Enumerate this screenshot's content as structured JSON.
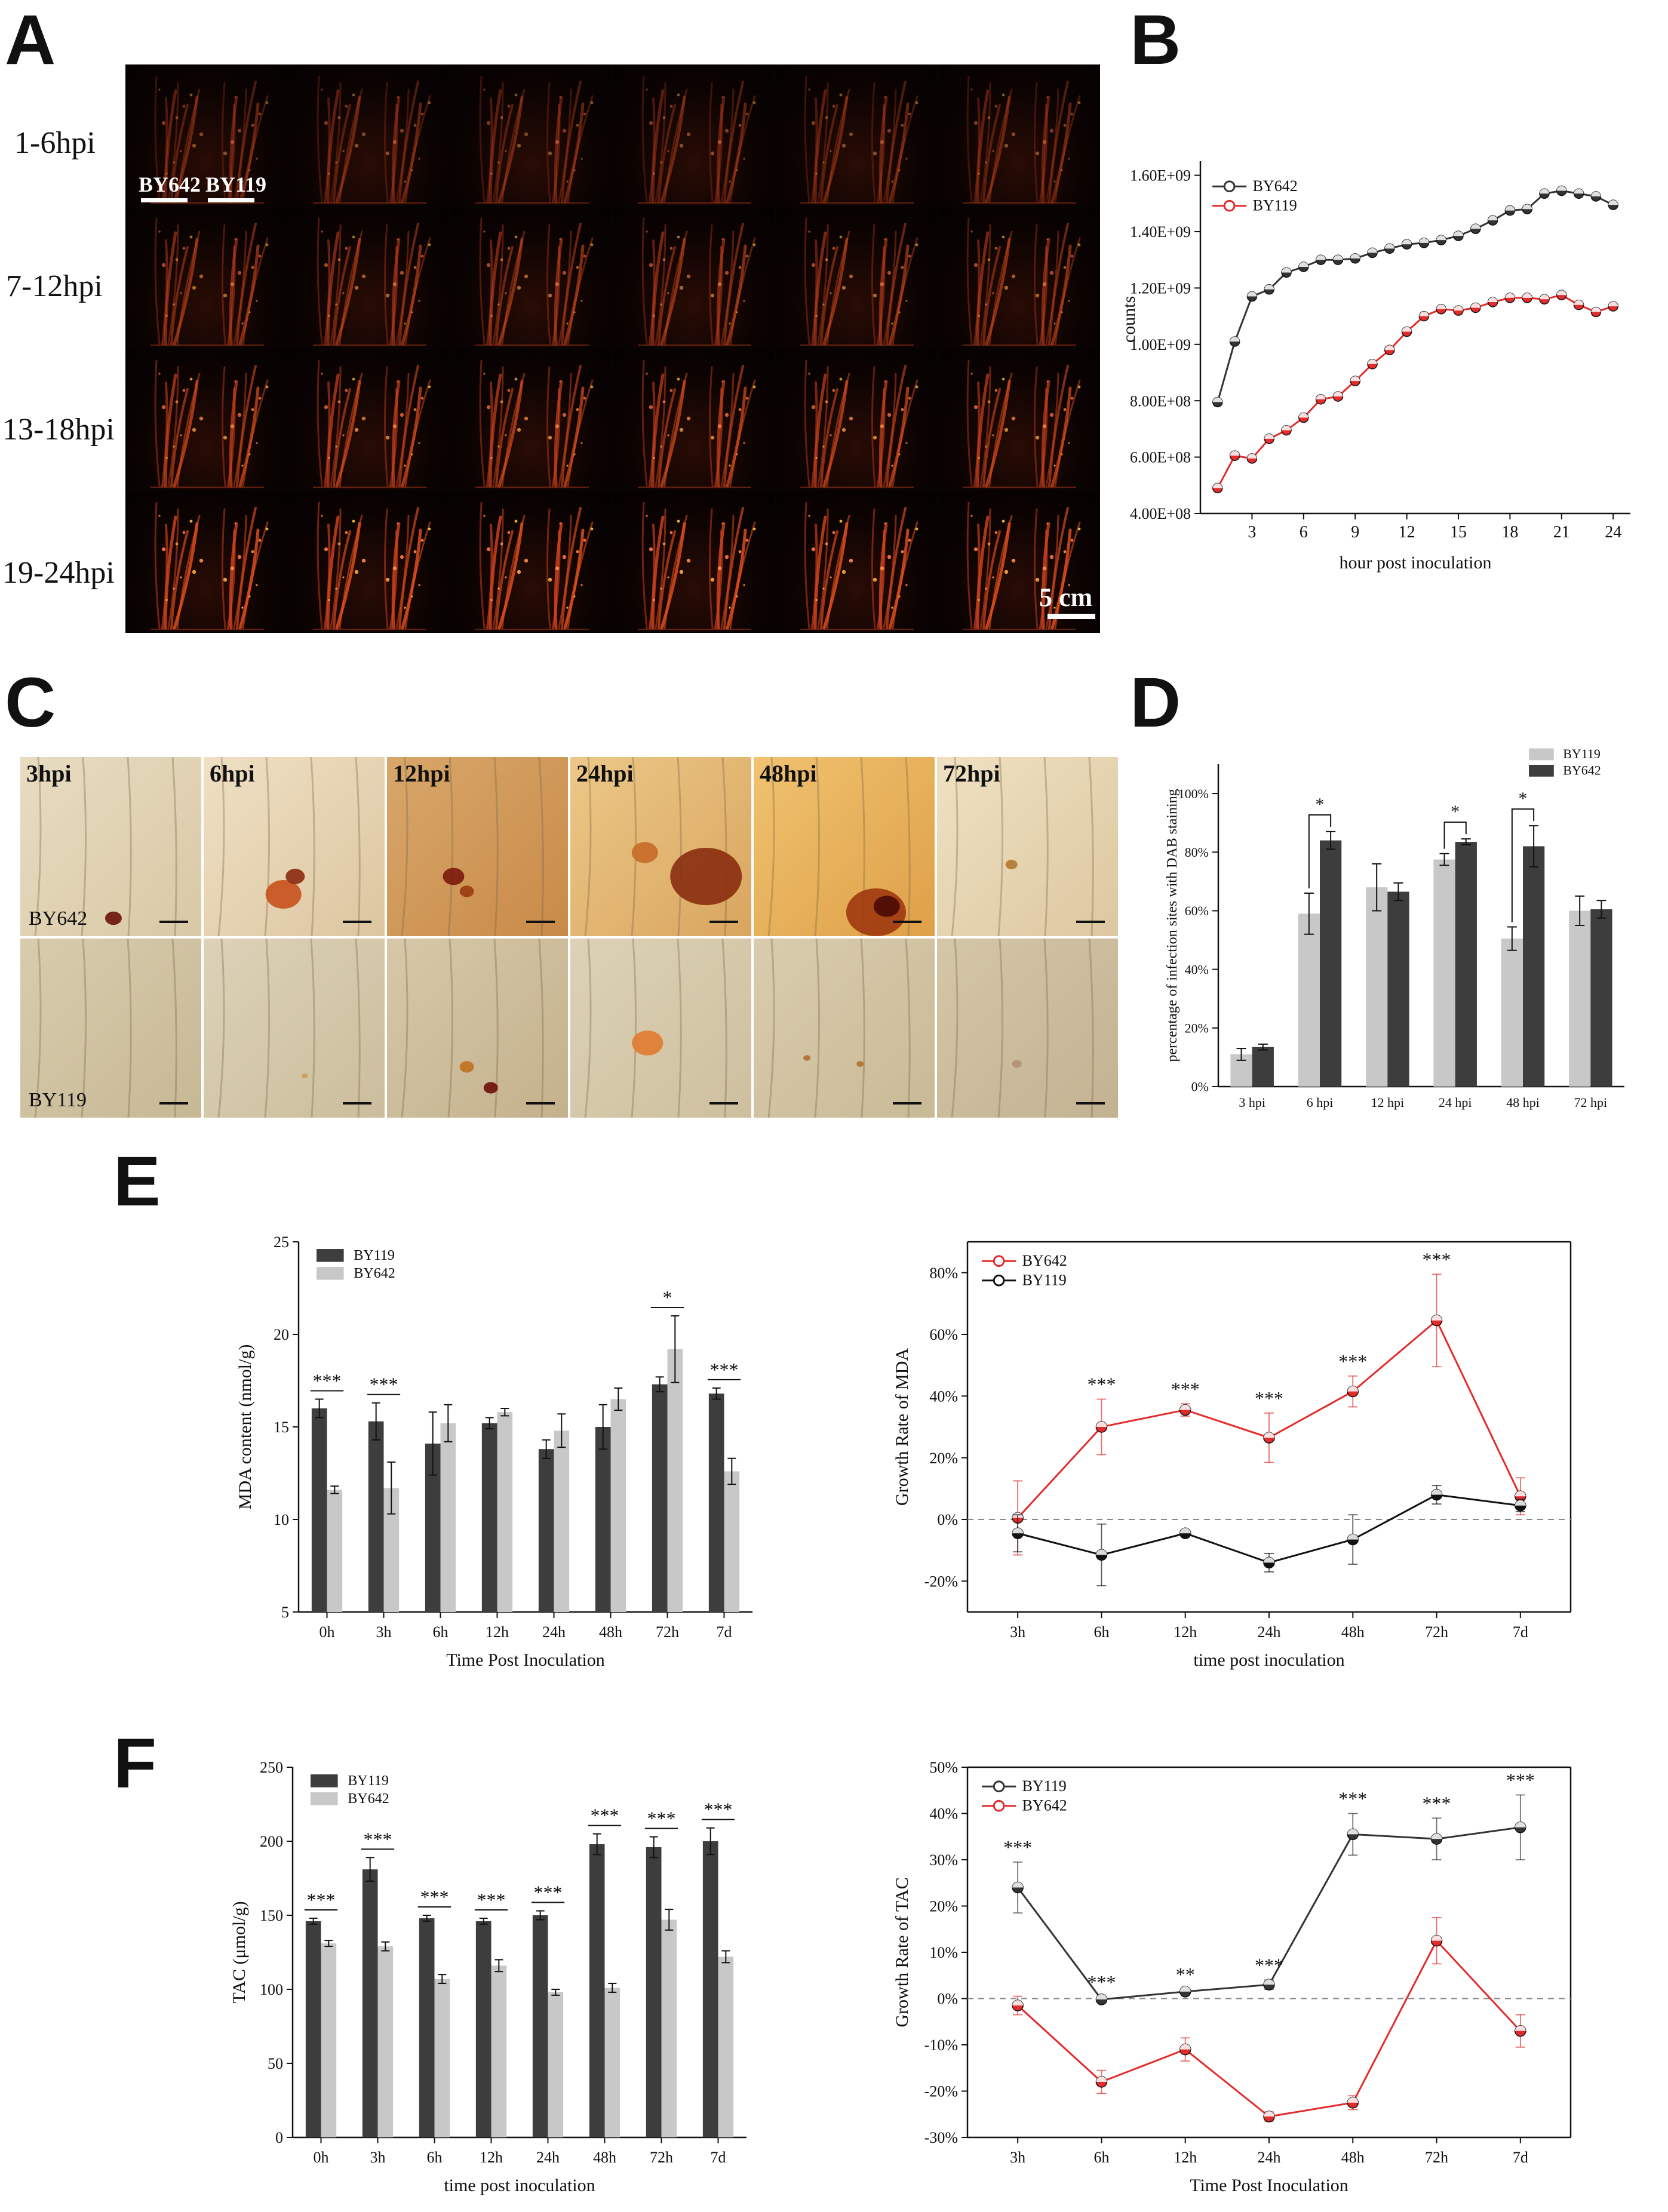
{
  "panels": {
    "A": "A",
    "B": "B",
    "C": "C",
    "D": "D",
    "E": "E",
    "F": "F"
  },
  "panelA": {
    "row_labels": [
      "1-6hpi",
      "7-12hpi",
      "13-18hpi",
      "19-24hpi"
    ],
    "genotype_labels": [
      "BY642",
      "BY119"
    ],
    "scale": "5 cm"
  },
  "panelC": {
    "time_labels": [
      "3hpi",
      "6hpi",
      "12hpi",
      "24hpi",
      "48hpi",
      "72hpi"
    ],
    "row_labels": [
      "BY642",
      "BY119"
    ]
  },
  "colors": {
    "black_series": "#333333",
    "red_series": "#e32b2b",
    "dark_bar": "#3d3d3d",
    "light_bar": "#c8c8c8"
  },
  "chart_data": [
    {
      "id": "B",
      "type": "line",
      "xlabel": "hour post inoculation",
      "ylabel": "counts",
      "xticks": [
        3,
        6,
        9,
        12,
        15,
        18,
        21,
        24
      ],
      "xlim": [
        0,
        25
      ],
      "ylim": [
        400000000,
        1650000000
      ],
      "yticks": [
        400000000,
        600000000,
        800000000,
        1000000000,
        1200000000,
        1400000000,
        1600000000
      ],
      "ytick_labels": [
        "4.00E+08",
        "6.00E+08",
        "8.00E+08",
        "1.00E+09",
        "1.20E+09",
        "1.40E+09",
        "1.60E+09"
      ],
      "legend": "top-left",
      "x": [
        1,
        2,
        3,
        4,
        5,
        6,
        7,
        8,
        9,
        10,
        11,
        12,
        13,
        14,
        15,
        16,
        17,
        18,
        19,
        20,
        21,
        22,
        23,
        24
      ],
      "series": [
        {
          "name": "BY642",
          "color": "#333333",
          "values": [
            795000000,
            1010000000,
            1170000000,
            1195000000,
            1255000000,
            1275000000,
            1300000000,
            1300000000,
            1305000000,
            1325000000,
            1340000000,
            1355000000,
            1360000000,
            1370000000,
            1385000000,
            1410000000,
            1440000000,
            1475000000,
            1480000000,
            1535000000,
            1545000000,
            1535000000,
            1525000000,
            1495000000
          ]
        },
        {
          "name": "BY119",
          "color": "#e32b2b",
          "values": [
            490000000,
            605000000,
            595000000,
            665000000,
            695000000,
            740000000,
            805000000,
            815000000,
            870000000,
            930000000,
            980000000,
            1045000000,
            1100000000,
            1125000000,
            1120000000,
            1130000000,
            1150000000,
            1165000000,
            1165000000,
            1160000000,
            1175000000,
            1140000000,
            1115000000,
            1135000000
          ]
        }
      ]
    },
    {
      "id": "D",
      "type": "bar",
      "ylabel": "percentage of infection sites with DAB staining",
      "categories": [
        "3 hpi",
        "6 hpi",
        "12 hpi",
        "24 hpi",
        "48 hpi",
        "72 hpi"
      ],
      "ylim": [
        0,
        1.1
      ],
      "yticks": [
        0,
        0.2,
        0.4,
        0.6,
        0.8,
        1.0
      ],
      "ytick_labels": [
        "0%",
        "20%",
        "40%",
        "60%",
        "80%",
        "100%"
      ],
      "legend": "top-right",
      "series": [
        {
          "name": "BY119",
          "color": "#c8c8c8",
          "values": [
            0.11,
            0.59,
            0.68,
            0.775,
            0.505,
            0.6
          ],
          "errors": [
            0.02,
            0.07,
            0.08,
            0.02,
            0.04,
            0.05
          ]
        },
        {
          "name": "BY642",
          "color": "#3d3d3d",
          "values": [
            0.135,
            0.84,
            0.665,
            0.835,
            0.82,
            0.605
          ],
          "errors": [
            0.01,
            0.03,
            0.03,
            0.01,
            0.07,
            0.03
          ]
        }
      ],
      "significance": [
        {
          "category": "6 hpi",
          "label": "*"
        },
        {
          "category": "24 hpi",
          "label": "*"
        },
        {
          "category": "48 hpi",
          "label": "*"
        }
      ]
    },
    {
      "id": "E-left",
      "type": "bar",
      "xlabel": "Time Post Inoculation",
      "ylabel": "MDA content (nmol/g)",
      "categories": [
        "0h",
        "3h",
        "6h",
        "12h",
        "24h",
        "48h",
        "72h",
        "7d"
      ],
      "ylim": [
        5,
        25
      ],
      "yticks": [
        5,
        10,
        15,
        20,
        25
      ],
      "ytick_labels": [
        "5",
        "10",
        "15",
        "20",
        "25"
      ],
      "legend": "top-left",
      "series": [
        {
          "name": "BY119",
          "color": "#3d3d3d",
          "values": [
            16.0,
            15.3,
            14.1,
            15.2,
            13.8,
            15.0,
            17.3,
            16.8
          ],
          "errors": [
            0.5,
            1.0,
            1.7,
            0.3,
            0.5,
            1.2,
            0.4,
            0.3
          ]
        },
        {
          "name": "BY642",
          "color": "#c8c8c8",
          "values": [
            11.6,
            11.7,
            15.2,
            15.8,
            14.8,
            16.5,
            19.2,
            12.6
          ],
          "errors": [
            0.2,
            1.4,
            1.0,
            0.2,
            0.9,
            0.6,
            1.8,
            0.7
          ]
        }
      ],
      "significance": [
        {
          "category": "0h",
          "label": "***"
        },
        {
          "category": "3h",
          "label": "***"
        },
        {
          "category": "72h",
          "label": "*"
        },
        {
          "category": "7d",
          "label": "***"
        }
      ]
    },
    {
      "id": "E-right",
      "type": "line",
      "xlabel": "time post inoculation",
      "ylabel": "Growth Rate of MDA",
      "categories": [
        "3h",
        "6h",
        "12h",
        "24h",
        "48h",
        "72h",
        "7d"
      ],
      "ylim": [
        -0.3,
        0.9
      ],
      "yticks": [
        -0.2,
        0,
        0.2,
        0.4,
        0.6,
        0.8
      ],
      "ytick_labels": [
        "-20%",
        "0%",
        "20%",
        "40%",
        "60%",
        "80%"
      ],
      "legend": "top-left",
      "series": [
        {
          "name": "BY642",
          "color": "#e32b2b",
          "values": [
            0.005,
            0.3,
            0.355,
            0.265,
            0.415,
            0.645,
            0.075
          ],
          "errors": [
            0.12,
            0.09,
            0.02,
            0.08,
            0.05,
            0.15,
            0.06
          ]
        },
        {
          "name": "BY119",
          "color": "#111111",
          "values": [
            -0.045,
            -0.115,
            -0.045,
            -0.14,
            -0.065,
            0.08,
            0.045
          ],
          "errors": [
            0.06,
            0.1,
            0.01,
            0.03,
            0.08,
            0.03,
            0.02
          ]
        }
      ],
      "significance": [
        {
          "category": "6h",
          "label": "***"
        },
        {
          "category": "12h",
          "label": "***"
        },
        {
          "category": "24h",
          "label": "***"
        },
        {
          "category": "48h",
          "label": "***"
        },
        {
          "category": "72h",
          "label": "***"
        }
      ]
    },
    {
      "id": "F-left",
      "type": "bar",
      "xlabel": "time post inoculation",
      "ylabel": "TAC (μmol/g)",
      "categories": [
        "0h",
        "3h",
        "6h",
        "12h",
        "24h",
        "48h",
        "72h",
        "7d"
      ],
      "ylim": [
        0,
        250
      ],
      "yticks": [
        0,
        50,
        100,
        150,
        200,
        250
      ],
      "ytick_labels": [
        "0",
        "50",
        "100",
        "150",
        "200",
        "250"
      ],
      "legend": "top-left",
      "series": [
        {
          "name": "BY119",
          "color": "#3d3d3d",
          "values": [
            146,
            181,
            148,
            146,
            150,
            198,
            196,
            200
          ],
          "errors": [
            2,
            8,
            2,
            2,
            3,
            7,
            7,
            9
          ]
        },
        {
          "name": "BY642",
          "color": "#c8c8c8",
          "values": [
            131,
            129,
            107,
            116,
            98,
            101,
            147,
            122
          ],
          "errors": [
            2,
            3,
            3,
            4,
            2,
            3,
            7,
            4
          ]
        }
      ],
      "significance": [
        {
          "category": "0h",
          "label": "***"
        },
        {
          "category": "3h",
          "label": "***"
        },
        {
          "category": "6h",
          "label": "***"
        },
        {
          "category": "12h",
          "label": "***"
        },
        {
          "category": "24h",
          "label": "***"
        },
        {
          "category": "48h",
          "label": "***"
        },
        {
          "category": "72h",
          "label": "***"
        },
        {
          "category": "7d",
          "label": "***"
        }
      ]
    },
    {
      "id": "F-right",
      "type": "line",
      "xlabel": "Time Post Inoculation",
      "ylabel": "Growth Rate of TAC",
      "categories": [
        "3h",
        "6h",
        "12h",
        "24h",
        "48h",
        "72h",
        "7d"
      ],
      "ylim": [
        -0.3,
        0.5
      ],
      "yticks": [
        -0.3,
        -0.2,
        -0.1,
        0,
        0.1,
        0.2,
        0.3,
        0.4,
        0.5
      ],
      "ytick_labels": [
        "-30%",
        "-20%",
        "-10%",
        "0%",
        "10%",
        "20%",
        "30%",
        "40%",
        "50%"
      ],
      "legend": "top-left",
      "series": [
        {
          "name": "BY119",
          "color": "#333333",
          "values": [
            0.24,
            -0.002,
            0.015,
            0.03,
            0.355,
            0.345,
            0.37
          ],
          "errors": [
            0.055,
            0.005,
            0.005,
            0.01,
            0.045,
            0.045,
            0.07
          ]
        },
        {
          "name": "BY642",
          "color": "#e32b2b",
          "values": [
            -0.015,
            -0.18,
            -0.11,
            -0.255,
            -0.225,
            0.125,
            -0.07
          ],
          "errors": [
            0.02,
            0.025,
            0.025,
            0.01,
            0.015,
            0.05,
            0.035
          ]
        }
      ],
      "significance": [
        {
          "category": "3h",
          "label": "***"
        },
        {
          "category": "6h",
          "label": "***"
        },
        {
          "category": "12h",
          "label": "**"
        },
        {
          "category": "24h",
          "label": "***"
        },
        {
          "category": "48h",
          "label": "***"
        },
        {
          "category": "72h",
          "label": "***"
        },
        {
          "category": "7d",
          "label": "***"
        }
      ]
    }
  ]
}
